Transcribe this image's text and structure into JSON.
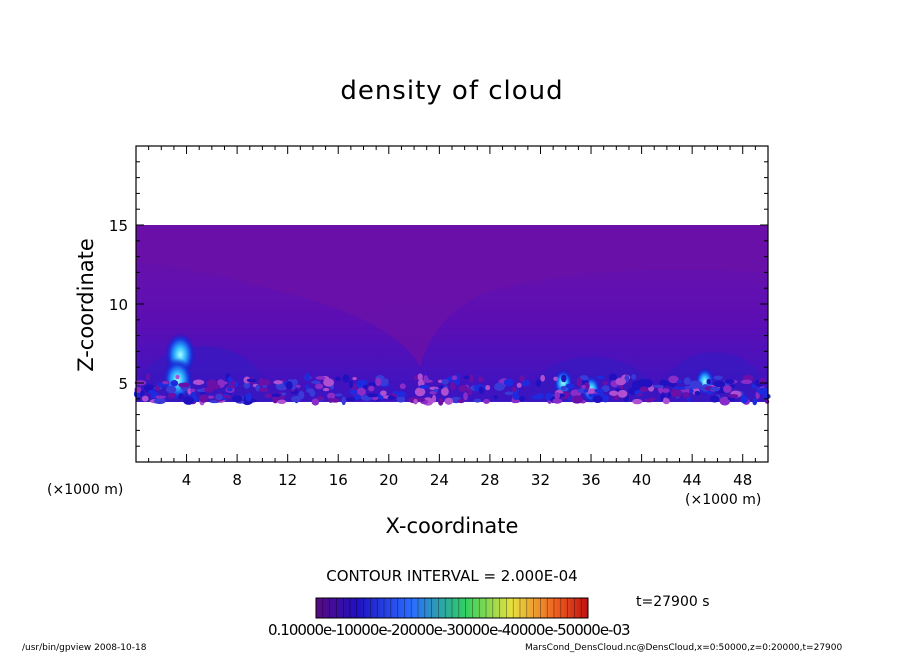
{
  "chart_data": {
    "type": "heatmap",
    "title": "density of cloud",
    "xlabel": "X-coordinate",
    "ylabel": "Z-coordinate",
    "x_unit": "(×1000 m)",
    "xlim": [
      0,
      50
    ],
    "ylim": [
      0,
      20
    ],
    "x_ticks": [
      "4",
      "8",
      "12",
      "16",
      "20",
      "24",
      "28",
      "32",
      "36",
      "40",
      "44",
      "48"
    ],
    "y_ticks": [
      "5",
      "10",
      "15"
    ],
    "cloud_layer_z": [
      3.8,
      15.0
    ],
    "hotspots": [
      {
        "x": 3.5,
        "z": 6.8,
        "level": "high"
      },
      {
        "x": 3.3,
        "z": 5.2,
        "level": "high"
      },
      {
        "x": 33.8,
        "z": 5.0,
        "level": "medium"
      },
      {
        "x": 36.0,
        "z": 4.6,
        "level": "medium"
      },
      {
        "x": 45.0,
        "z": 5.1,
        "level": "medium"
      }
    ],
    "contour_interval": "CONTOUR INTERVAL = 2.000E-04",
    "time": "t=27900 s",
    "colorbar_labels": [
      "0.1000e-1",
      "0.1000e-2",
      "0.2000e-3",
      "0.3000e-3",
      "0.4000e-3",
      "0.5000e-3"
    ],
    "colorbar_label_text": "0.10000e-10000e-20000e-30000e-40000e-50000e-03",
    "colors": {
      "background_top": "#6a10a8",
      "background_mid": "#5a0cb8",
      "low_band": "#3818c0",
      "hot": "#40c8ff"
    }
  },
  "footer": {
    "left": "/usr/bin/gpview   2008-10-18",
    "right": "MarsCond_DensCloud.nc@DensCloud,x=0:50000,z=0:20000,t=27900"
  }
}
